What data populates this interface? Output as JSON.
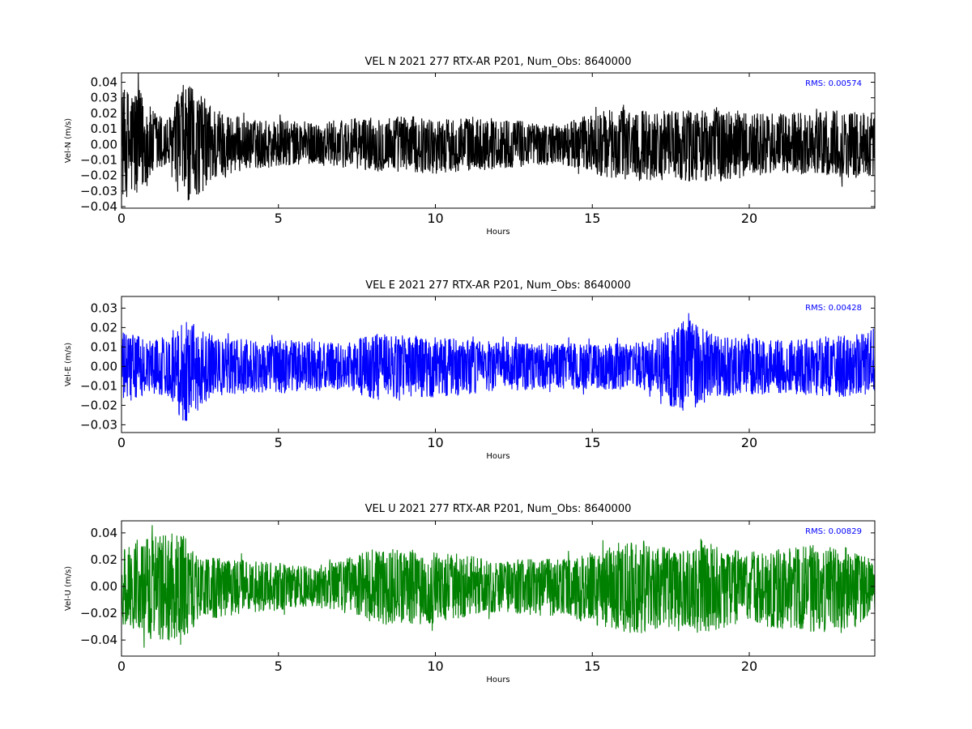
{
  "chart_data": [
    {
      "type": "line",
      "title": "VEL N 2021 277 RTX-AR  P201, Num_Obs: 8640000",
      "xlabel": "Hours",
      "ylabel": "Vel-N (m/s)",
      "xlim": [
        0,
        24
      ],
      "ylim": [
        -0.041,
        0.046
      ],
      "x_ticks": [
        0,
        5,
        10,
        15,
        20
      ],
      "x_tick_labels": [
        "0",
        "5",
        "10",
        "15",
        "20"
      ],
      "y_ticks": [
        -0.04,
        -0.03,
        -0.02,
        -0.01,
        0.0,
        0.01,
        0.02,
        0.03,
        0.04
      ],
      "y_tick_labels": [
        "−0.04",
        "−0.03",
        "−0.02",
        "−0.01",
        "0.00",
        "0.01",
        "0.02",
        "0.03",
        "0.04"
      ],
      "annotation": "RMS:  0.00574",
      "annotation_color": "#0000ff",
      "series_color": "#000000",
      "grid": false,
      "series": [
        {
          "x": [
            0,
            0.5,
            1,
            1.5,
            2,
            2.5,
            3,
            3.5,
            4,
            5,
            6,
            7,
            8,
            9,
            10,
            11,
            12,
            13,
            14,
            15,
            16,
            17,
            18,
            19,
            20,
            21,
            22,
            23,
            24
          ],
          "y_upper": [
            0.035,
            0.038,
            0.022,
            0.017,
            0.04,
            0.033,
            0.024,
            0.02,
            0.016,
            0.016,
            0.014,
            0.016,
            0.018,
            0.019,
            0.016,
            0.018,
            0.017,
            0.015,
            0.013,
            0.02,
            0.024,
            0.022,
            0.022,
            0.024,
            0.02,
            0.02,
            0.021,
            0.022,
            0.02
          ],
          "y_lower": [
            -0.034,
            -0.036,
            -0.022,
            -0.017,
            -0.04,
            -0.032,
            -0.024,
            -0.019,
            -0.016,
            -0.015,
            -0.013,
            -0.015,
            -0.017,
            -0.018,
            -0.019,
            -0.017,
            -0.016,
            -0.014,
            -0.013,
            -0.019,
            -0.024,
            -0.023,
            -0.024,
            -0.024,
            -0.021,
            -0.02,
            -0.02,
            -0.022,
            -0.021
          ]
        }
      ]
    },
    {
      "type": "line",
      "title": "VEL E 2021 277 RTX-AR  P201, Num_Obs: 8640000",
      "xlabel": "Hours",
      "ylabel": "Vel-E (m/s)",
      "xlim": [
        0,
        24
      ],
      "ylim": [
        -0.034,
        0.036
      ],
      "x_ticks": [
        0,
        5,
        10,
        15,
        20
      ],
      "x_tick_labels": [
        "0",
        "5",
        "10",
        "15",
        "20"
      ],
      "y_ticks": [
        -0.03,
        -0.02,
        -0.01,
        0.0,
        0.01,
        0.02,
        0.03
      ],
      "y_tick_labels": [
        "−0.03",
        "−0.02",
        "−0.01",
        "0.00",
        "0.01",
        "0.02",
        "0.03"
      ],
      "annotation": "RMS:  0.00428",
      "annotation_color": "#0000ff",
      "series_color": "#0000ff",
      "grid": false,
      "series": [
        {
          "x": [
            0,
            0.5,
            1,
            1.5,
            2,
            2.5,
            3,
            4,
            5,
            6,
            7,
            8,
            9,
            10,
            11,
            12,
            13,
            14,
            15,
            16,
            17,
            17.5,
            18,
            18.5,
            19,
            20,
            21,
            22,
            23,
            24
          ],
          "y_upper": [
            0.018,
            0.016,
            0.014,
            0.016,
            0.028,
            0.02,
            0.015,
            0.014,
            0.014,
            0.013,
            0.012,
            0.017,
            0.016,
            0.015,
            0.014,
            0.013,
            0.012,
            0.012,
            0.012,
            0.012,
            0.014,
            0.022,
            0.025,
            0.02,
            0.016,
            0.015,
            0.014,
            0.015,
            0.016,
            0.02
          ],
          "y_lower": [
            -0.02,
            -0.016,
            -0.014,
            -0.016,
            -0.03,
            -0.02,
            -0.015,
            -0.014,
            -0.014,
            -0.013,
            -0.012,
            -0.017,
            -0.018,
            -0.016,
            -0.015,
            -0.013,
            -0.012,
            -0.012,
            -0.012,
            -0.012,
            -0.013,
            -0.021,
            -0.024,
            -0.02,
            -0.016,
            -0.015,
            -0.014,
            -0.015,
            -0.016,
            -0.015
          ]
        }
      ]
    },
    {
      "type": "line",
      "title": "VEL U 2021 277 RTX-AR  P201, Num_Obs: 8640000",
      "xlabel": "Hours",
      "ylabel": "Vel-U (m/s)",
      "xlim": [
        0,
        24
      ],
      "ylim": [
        -0.052,
        0.049
      ],
      "x_ticks": [
        0,
        5,
        10,
        15,
        20
      ],
      "x_tick_labels": [
        "0",
        "5",
        "10",
        "15",
        "20"
      ],
      "y_ticks": [
        -0.04,
        -0.02,
        0.0,
        0.02,
        0.04
      ],
      "y_tick_labels": [
        "−0.04",
        "−0.02",
        "0.00",
        "0.02",
        "0.04"
      ],
      "annotation": "RMS:  0.00829",
      "annotation_color": "#0000ff",
      "series_color": "#008000",
      "grid": false,
      "series": [
        {
          "x": [
            0,
            0.5,
            1,
            1.5,
            2,
            2.5,
            3,
            4,
            5,
            6,
            7,
            8,
            8.5,
            9,
            10,
            11,
            12,
            13,
            14,
            15,
            16,
            16.5,
            17,
            18,
            18.5,
            19,
            20,
            21,
            22,
            23,
            24
          ],
          "y_upper": [
            0.028,
            0.035,
            0.038,
            0.04,
            0.038,
            0.022,
            0.022,
            0.02,
            0.018,
            0.015,
            0.02,
            0.028,
            0.03,
            0.028,
            0.026,
            0.024,
            0.018,
            0.022,
            0.02,
            0.026,
            0.034,
            0.036,
            0.03,
            0.028,
            0.035,
            0.03,
            0.026,
            0.028,
            0.032,
            0.028,
            0.02
          ],
          "y_lower": [
            -0.028,
            -0.035,
            -0.04,
            -0.042,
            -0.045,
            -0.024,
            -0.024,
            -0.02,
            -0.018,
            -0.015,
            -0.02,
            -0.028,
            -0.03,
            -0.03,
            -0.028,
            -0.024,
            -0.02,
            -0.022,
            -0.022,
            -0.028,
            -0.034,
            -0.036,
            -0.032,
            -0.03,
            -0.038,
            -0.032,
            -0.028,
            -0.032,
            -0.034,
            -0.035,
            -0.02
          ]
        }
      ]
    }
  ]
}
